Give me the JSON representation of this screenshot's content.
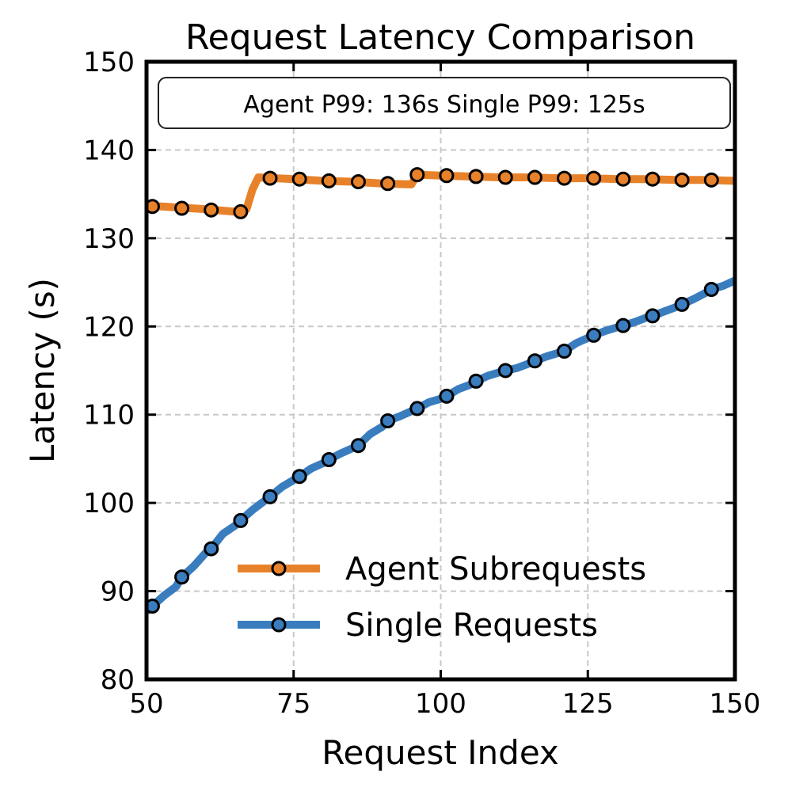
{
  "chart_data": {
    "type": "line",
    "title": "Request Latency Comparison",
    "xlabel": "Request Index",
    "ylabel": "Latency (s)",
    "xlim": [
      50,
      150
    ],
    "ylim": [
      80,
      150
    ],
    "xticks": [
      50,
      75,
      100,
      125,
      150
    ],
    "yticks": [
      80,
      90,
      100,
      110,
      120,
      130,
      140,
      150
    ],
    "grid": true,
    "legend_position": "lower-right",
    "annotation": "Agent P99: 136s Single P99: 125s",
    "series": [
      {
        "name": "Agent Subrequests",
        "color": "#e8822a",
        "line": [
          [
            50,
            133.7
          ],
          [
            55,
            133.5
          ],
          [
            60,
            133.3
          ],
          [
            65,
            133.0
          ],
          [
            66,
            133.0
          ],
          [
            67,
            133.3
          ],
          [
            68,
            135.5
          ],
          [
            69,
            136.9
          ],
          [
            75,
            136.7
          ],
          [
            80,
            136.5
          ],
          [
            85,
            136.4
          ],
          [
            90,
            136.2
          ],
          [
            95,
            136.1
          ],
          [
            96,
            137.2
          ],
          [
            100,
            137.1
          ],
          [
            105,
            137.0
          ],
          [
            110,
            136.9
          ],
          [
            115,
            136.9
          ],
          [
            120,
            136.8
          ],
          [
            125,
            136.8
          ],
          [
            130,
            136.7
          ],
          [
            135,
            136.7
          ],
          [
            140,
            136.6
          ],
          [
            145,
            136.6
          ],
          [
            150,
            136.5
          ]
        ],
        "markers": [
          [
            51,
            133.6
          ],
          [
            56,
            133.4
          ],
          [
            61,
            133.2
          ],
          [
            66,
            133.0
          ],
          [
            71,
            136.8
          ],
          [
            76,
            136.7
          ],
          [
            81,
            136.5
          ],
          [
            86,
            136.4
          ],
          [
            91,
            136.2
          ],
          [
            96,
            137.2
          ],
          [
            101,
            137.1
          ],
          [
            106,
            137.0
          ],
          [
            111,
            136.9
          ],
          [
            116,
            136.9
          ],
          [
            121,
            136.8
          ],
          [
            126,
            136.8
          ],
          [
            131,
            136.7
          ],
          [
            136,
            136.7
          ],
          [
            141,
            136.6
          ],
          [
            146,
            136.6
          ]
        ]
      },
      {
        "name": "Single Requests",
        "color": "#3a7dbf",
        "line": [
          [
            50,
            87.7
          ],
          [
            51,
            88.3
          ],
          [
            53,
            89.5
          ],
          [
            55,
            90.5
          ],
          [
            56,
            91.6
          ],
          [
            58,
            92.8
          ],
          [
            60,
            94.3
          ],
          [
            61,
            94.8
          ],
          [
            63,
            96.5
          ],
          [
            65,
            97.4
          ],
          [
            66,
            98.0
          ],
          [
            68,
            99.2
          ],
          [
            70,
            100.2
          ],
          [
            71,
            100.7
          ],
          [
            73,
            101.8
          ],
          [
            75,
            102.6
          ],
          [
            76,
            103.0
          ],
          [
            78,
            103.9
          ],
          [
            80,
            104.5
          ],
          [
            81,
            104.9
          ],
          [
            83,
            105.6
          ],
          [
            85,
            106.2
          ],
          [
            86,
            106.5
          ],
          [
            88,
            107.8
          ],
          [
            90,
            108.6
          ],
          [
            91,
            109.3
          ],
          [
            93,
            109.8
          ],
          [
            95,
            110.4
          ],
          [
            96,
            110.7
          ],
          [
            98,
            111.4
          ],
          [
            100,
            111.8
          ],
          [
            101,
            112.1
          ],
          [
            103,
            112.9
          ],
          [
            105,
            113.4
          ],
          [
            106,
            113.8
          ],
          [
            108,
            114.4
          ],
          [
            110,
            114.8
          ],
          [
            111,
            115.0
          ],
          [
            113,
            115.3
          ],
          [
            115,
            115.8
          ],
          [
            116,
            116.1
          ],
          [
            118,
            116.6
          ],
          [
            120,
            117.0
          ],
          [
            121,
            117.2
          ],
          [
            123,
            118.1
          ],
          [
            125,
            118.7
          ],
          [
            126,
            119.0
          ],
          [
            128,
            119.5
          ],
          [
            130,
            119.9
          ],
          [
            131,
            120.1
          ],
          [
            133,
            120.5
          ],
          [
            135,
            121.0
          ],
          [
            136,
            121.2
          ],
          [
            138,
            121.7
          ],
          [
            140,
            122.2
          ],
          [
            141,
            122.5
          ],
          [
            143,
            123.1
          ],
          [
            145,
            123.8
          ],
          [
            146,
            124.2
          ],
          [
            148,
            124.6
          ],
          [
            150,
            125.2
          ]
        ],
        "markers": [
          [
            51,
            88.3
          ],
          [
            56,
            91.6
          ],
          [
            61,
            94.8
          ],
          [
            66,
            98.0
          ],
          [
            71,
            100.7
          ],
          [
            76,
            103.0
          ],
          [
            81,
            104.9
          ],
          [
            86,
            106.5
          ],
          [
            91,
            109.3
          ],
          [
            96,
            110.7
          ],
          [
            101,
            112.1
          ],
          [
            106,
            113.8
          ],
          [
            111,
            115.0
          ],
          [
            116,
            116.1
          ],
          [
            121,
            117.2
          ],
          [
            126,
            119.0
          ],
          [
            131,
            120.1
          ],
          [
            136,
            121.2
          ],
          [
            141,
            122.5
          ],
          [
            146,
            124.2
          ]
        ]
      }
    ]
  }
}
